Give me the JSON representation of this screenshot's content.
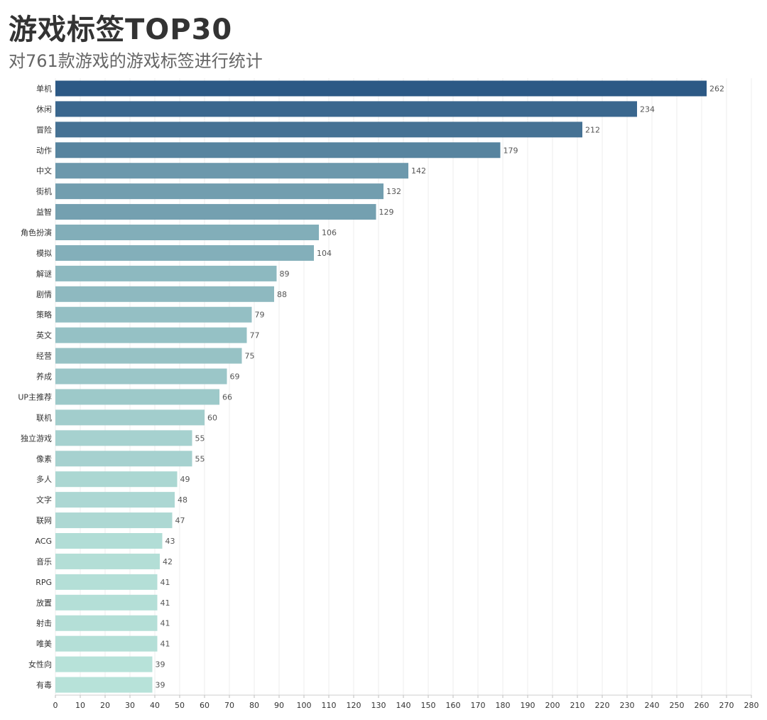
{
  "chart_data": {
    "type": "bar",
    "orientation": "horizontal",
    "title": "游戏标签TOP30",
    "subtitle": "对761款游戏的游戏标签进行统计",
    "categories": [
      "单机",
      "休闲",
      "冒险",
      "动作",
      "中文",
      "街机",
      "益智",
      "角色扮演",
      "模拟",
      "解谜",
      "剧情",
      "策略",
      "英文",
      "经营",
      "养成",
      "UP主推荐",
      "联机",
      "独立游戏",
      "像素",
      "多人",
      "文字",
      "联网",
      "ACG",
      "音乐",
      "RPG",
      "放置",
      "射击",
      "唯美",
      "女性向",
      "有毒"
    ],
    "values": [
      262,
      234,
      212,
      179,
      142,
      132,
      129,
      106,
      104,
      89,
      88,
      79,
      77,
      75,
      69,
      66,
      60,
      55,
      55,
      49,
      48,
      47,
      43,
      42,
      41,
      41,
      41,
      41,
      39,
      39
    ],
    "xlim": [
      0,
      280
    ],
    "xticks": [
      "0",
      "10",
      "20",
      "30",
      "40",
      "50",
      "60",
      "70",
      "80",
      "90",
      "100",
      "110",
      "120",
      "130",
      "140",
      "150",
      "160",
      "170",
      "180",
      "190",
      "200",
      "210",
      "220",
      "230",
      "240",
      "250",
      "260",
      "270",
      "280"
    ],
    "grid": true,
    "color_low": "#b7e2d9",
    "color_high": "#2c5985"
  }
}
